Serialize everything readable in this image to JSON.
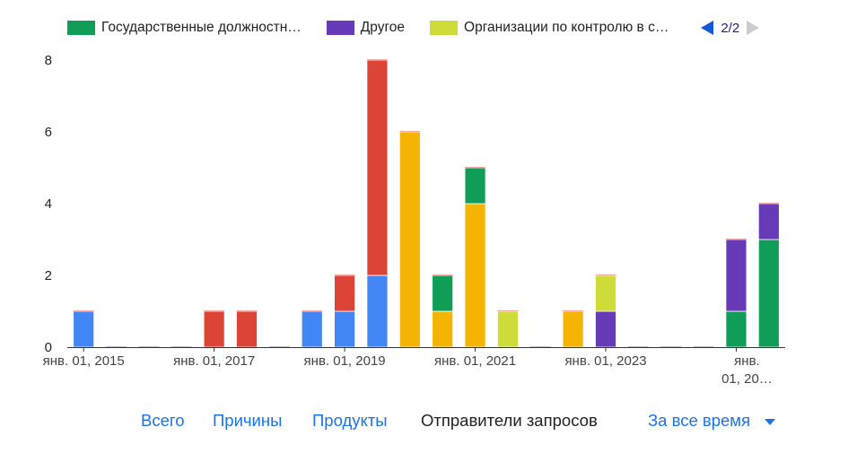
{
  "chart_data": {
    "type": "bar",
    "stacked": true,
    "categories": [
      "2015-01",
      "2015-07",
      "2016-01",
      "2016-07",
      "2017-01",
      "2017-07",
      "2018-01",
      "2018-07",
      "2019-01",
      "2019-07",
      "2020-01",
      "2020-07",
      "2021-01",
      "2021-07",
      "2022-01",
      "2022-07",
      "2023-01",
      "2023-07",
      "2024-01",
      "2024-07",
      "2025-01",
      "2025-07"
    ],
    "series": [
      {
        "color": "#4285f4",
        "values": [
          1,
          0,
          0,
          0,
          0,
          0,
          0,
          1,
          1,
          2,
          0,
          0,
          0,
          0,
          0,
          0,
          0,
          0,
          0,
          0,
          0,
          0
        ]
      },
      {
        "color": "#db4437",
        "values": [
          0,
          0,
          0,
          0,
          1,
          1,
          0,
          0,
          1,
          6,
          0,
          0,
          0,
          0,
          0,
          0,
          0,
          0,
          0,
          0,
          0,
          0
        ]
      },
      {
        "color": "#f4b400",
        "values": [
          0,
          0,
          0,
          0,
          0,
          0,
          0,
          0,
          0,
          0,
          6,
          1,
          4,
          0,
          0,
          1,
          0,
          0,
          0,
          0,
          0,
          0
        ]
      },
      {
        "name": "Государственные должностн…",
        "color": "#0f9d58",
        "values": [
          0,
          0,
          0,
          0,
          0,
          0,
          0,
          0,
          0,
          0,
          0,
          1,
          1,
          0,
          0,
          0,
          0,
          0,
          0,
          0,
          1,
          3
        ]
      },
      {
        "name": "Другое",
        "color": "#673ab7",
        "values": [
          0,
          0,
          0,
          0,
          0,
          0,
          0,
          0,
          0,
          0,
          0,
          0,
          0,
          0,
          0,
          0,
          1,
          0,
          0,
          0,
          2,
          1
        ]
      },
      {
        "name": "Организации по контролю в с…",
        "color": "#cddc39",
        "values": [
          0,
          0,
          0,
          0,
          0,
          0,
          0,
          0,
          0,
          0,
          0,
          0,
          0,
          1,
          0,
          0,
          1,
          0,
          0,
          0,
          0,
          0
        ]
      }
    ],
    "ylim": [
      0,
      8
    ],
    "yticks": [
      0,
      2,
      4,
      6,
      8
    ],
    "xtick_labels": [
      {
        "index": 0,
        "lines": [
          "янв. 01, 2015"
        ]
      },
      {
        "index": 4,
        "lines": [
          "янв. 01, 2017"
        ]
      },
      {
        "index": 8,
        "lines": [
          "янв. 01, 2019"
        ]
      },
      {
        "index": 12,
        "lines": [
          "янв. 01, 2021"
        ]
      },
      {
        "index": 16,
        "lines": [
          "янв. 01, 2023"
        ]
      },
      {
        "index": 20,
        "lines": [
          "янв.",
          "01, 20…"
        ]
      }
    ],
    "grid": false,
    "legend_position": "top"
  },
  "legend": {
    "items": [
      {
        "label": "Государственные должностн…",
        "color": "#0f9d58"
      },
      {
        "label": "Другое",
        "color": "#673ab7"
      },
      {
        "label": "Организации по контролю в с…",
        "color": "#cddc39"
      }
    ],
    "page": "2/2"
  },
  "tabs": {
    "all": "Всего",
    "reasons": "Причины",
    "products": "Продукты",
    "requesters": "Отправители запросов"
  },
  "range_select": {
    "label": "За все время"
  }
}
